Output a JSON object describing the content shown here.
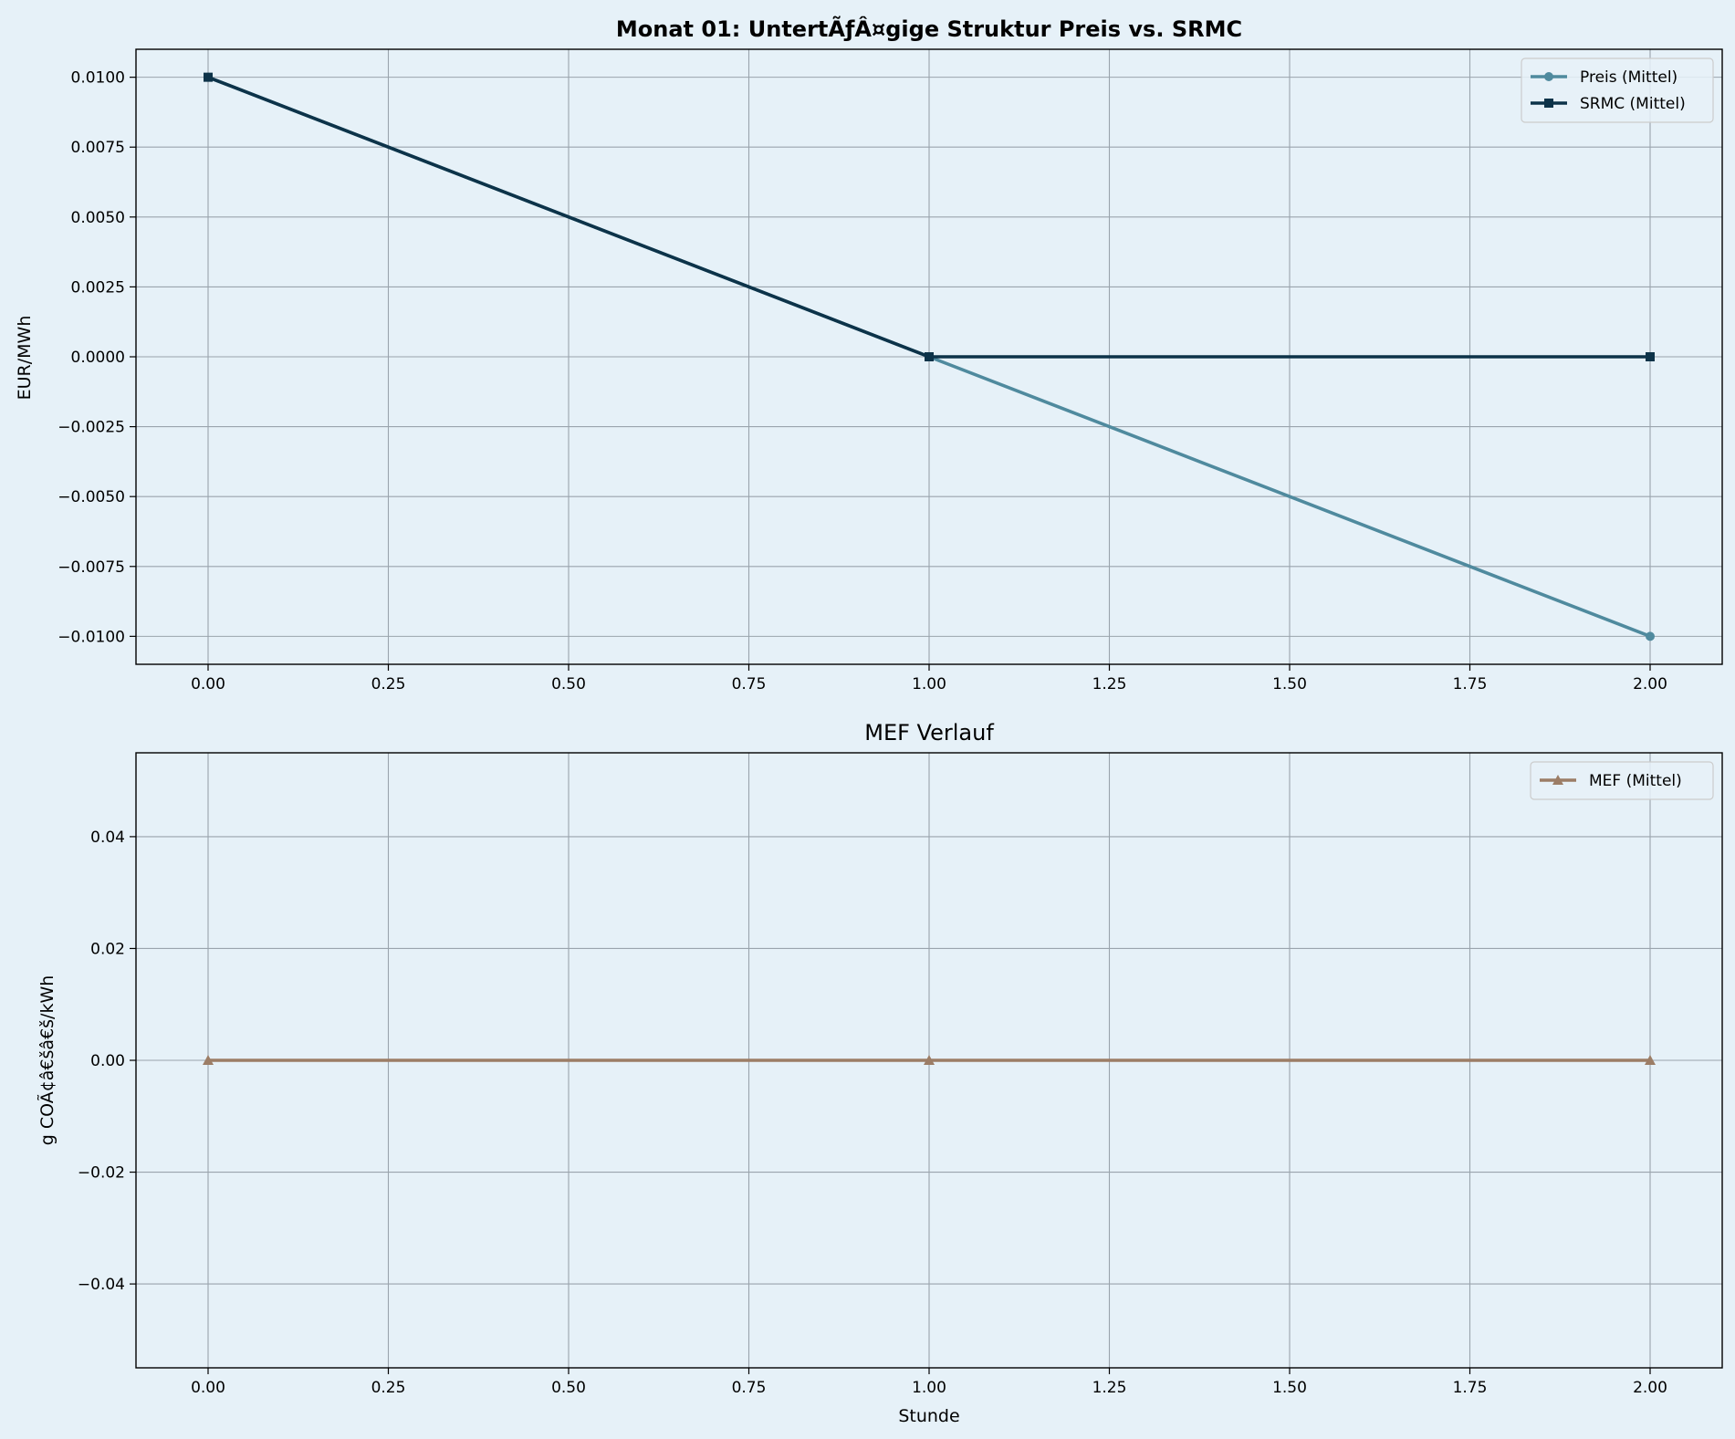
{
  "chart_data": [
    {
      "type": "line",
      "title": "Monat 01: UntertÃƒÂ¤gige Struktur Preis vs. SRMC",
      "xlabel": "",
      "ylabel": "EUR/MWh",
      "xlim": [
        -0.1,
        2.1
      ],
      "ylim": [
        -0.011,
        0.011
      ],
      "xticks": [
        0.0,
        0.25,
        0.5,
        0.75,
        1.0,
        1.25,
        1.5,
        1.75,
        2.0
      ],
      "xtick_labels": [
        "0.00",
        "0.25",
        "0.50",
        "0.75",
        "1.00",
        "1.25",
        "1.50",
        "1.75",
        "2.00"
      ],
      "yticks": [
        -0.01,
        -0.0075,
        -0.005,
        -0.0025,
        0.0,
        0.0025,
        0.005,
        0.0075,
        0.01
      ],
      "ytick_labels": [
        "−0.0100",
        "−0.0075",
        "−0.0050",
        "−0.0025",
        "0.0000",
        "0.0025",
        "0.0050",
        "0.0075",
        "0.0100"
      ],
      "grid": true,
      "legend_position": "top-right",
      "series": [
        {
          "name": "Preis (Mittel)",
          "x": [
            0,
            1,
            2
          ],
          "values": [
            0.01,
            0.0,
            -0.01
          ],
          "color": "#4f8a9e",
          "marker": "circle"
        },
        {
          "name": "SRMC (Mittel)",
          "x": [
            0,
            1,
            2
          ],
          "values": [
            0.01,
            0.0,
            0.0
          ],
          "color": "#0d3349",
          "marker": "square"
        }
      ]
    },
    {
      "type": "line",
      "title": "MEF Verlauf",
      "xlabel": "Stunde",
      "ylabel": "g COÃ¢â€šâ€š/kWh",
      "xlim": [
        -0.1,
        2.1
      ],
      "ylim": [
        -0.055,
        0.055
      ],
      "xticks": [
        0.0,
        0.25,
        0.5,
        0.75,
        1.0,
        1.25,
        1.5,
        1.75,
        2.0
      ],
      "xtick_labels": [
        "0.00",
        "0.25",
        "0.50",
        "0.75",
        "1.00",
        "1.25",
        "1.50",
        "1.75",
        "2.00"
      ],
      "yticks": [
        -0.04,
        -0.02,
        0.0,
        0.02,
        0.04
      ],
      "ytick_labels": [
        "−0.04",
        "−0.02",
        "0.00",
        "0.02",
        "0.04"
      ],
      "grid": true,
      "legend_position": "top-right",
      "series": [
        {
          "name": "MEF (Mittel)",
          "x": [
            0,
            1,
            2
          ],
          "values": [
            0.0,
            0.0,
            0.0
          ],
          "color": "#9c7d66",
          "marker": "triangle"
        }
      ]
    }
  ]
}
